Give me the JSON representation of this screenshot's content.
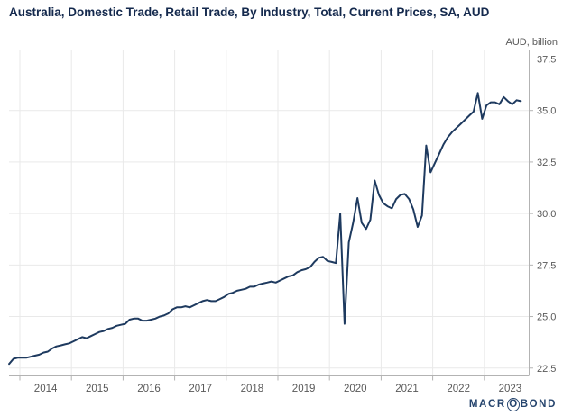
{
  "header": {
    "title": "Australia, Domestic Trade, Retail Trade, By Industry, Total, Current Prices, SA, AUD"
  },
  "chart": {
    "unit_label": "AUD, billion"
  },
  "branding": {
    "logo_before_circle": "MACR",
    "logo_circled_letter": "O",
    "logo_after_circle": "BOND"
  },
  "colors": {
    "line": "#1e3a5f",
    "title_text": "#14294d",
    "axis_text": "#595959",
    "grid_line": "#e9e9e9",
    "axis_line": "#b3b3b3",
    "logo_text": "#26456e"
  },
  "chart_data": {
    "type": "line",
    "title": "Australia, Domestic Trade, Retail Trade, By Industry, Total, Current Prices, SA, AUD",
    "xlabel": "",
    "ylabel": "AUD, billion",
    "ylim": [
      22.1,
      38.0
    ],
    "yticks": [
      22.5,
      25.0,
      27.5,
      30.0,
      32.5,
      35.0,
      37.5
    ],
    "year_tick_labels": [
      "2014",
      "2015",
      "2016",
      "2017",
      "2018",
      "2019",
      "2020",
      "2021",
      "2022",
      "2023"
    ],
    "frequency": "monthly",
    "x_start": "2013-10",
    "x_end": "2023-09",
    "grid": true,
    "legend_position": "none",
    "series": [
      {
        "name": "Retail Trade, Total, Current Prices, SA, AUD billion",
        "values": [
          22.7,
          22.95,
          23.0,
          23.0,
          23.0,
          23.05,
          23.1,
          23.15,
          23.25,
          23.3,
          23.45,
          23.55,
          23.6,
          23.65,
          23.7,
          23.8,
          23.9,
          24.0,
          23.95,
          24.05,
          24.15,
          24.25,
          24.3,
          24.4,
          24.45,
          24.55,
          24.6,
          24.65,
          24.85,
          24.9,
          24.9,
          24.8,
          24.8,
          24.85,
          24.9,
          25.0,
          25.05,
          25.15,
          25.35,
          25.45,
          25.45,
          25.5,
          25.45,
          25.55,
          25.65,
          25.75,
          25.8,
          25.75,
          25.75,
          25.85,
          25.95,
          26.1,
          26.15,
          26.25,
          26.3,
          26.35,
          26.45,
          26.45,
          26.55,
          26.6,
          26.65,
          26.7,
          26.65,
          26.75,
          26.85,
          26.95,
          27.0,
          27.15,
          27.25,
          27.3,
          27.4,
          27.65,
          27.85,
          27.9,
          27.7,
          27.65,
          27.6,
          30.0,
          24.65,
          28.6,
          29.55,
          30.75,
          29.55,
          29.25,
          29.7,
          31.6,
          30.9,
          30.5,
          30.35,
          30.25,
          30.7,
          30.9,
          30.95,
          30.7,
          30.2,
          29.35,
          29.9,
          33.3,
          32.0,
          32.45,
          32.9,
          33.35,
          33.7,
          33.95,
          34.15,
          34.35,
          34.55,
          34.75,
          34.95,
          35.85,
          34.6,
          35.25,
          35.4,
          35.4,
          35.3,
          35.65,
          35.45,
          35.3,
          35.5,
          35.45
        ]
      }
    ]
  }
}
